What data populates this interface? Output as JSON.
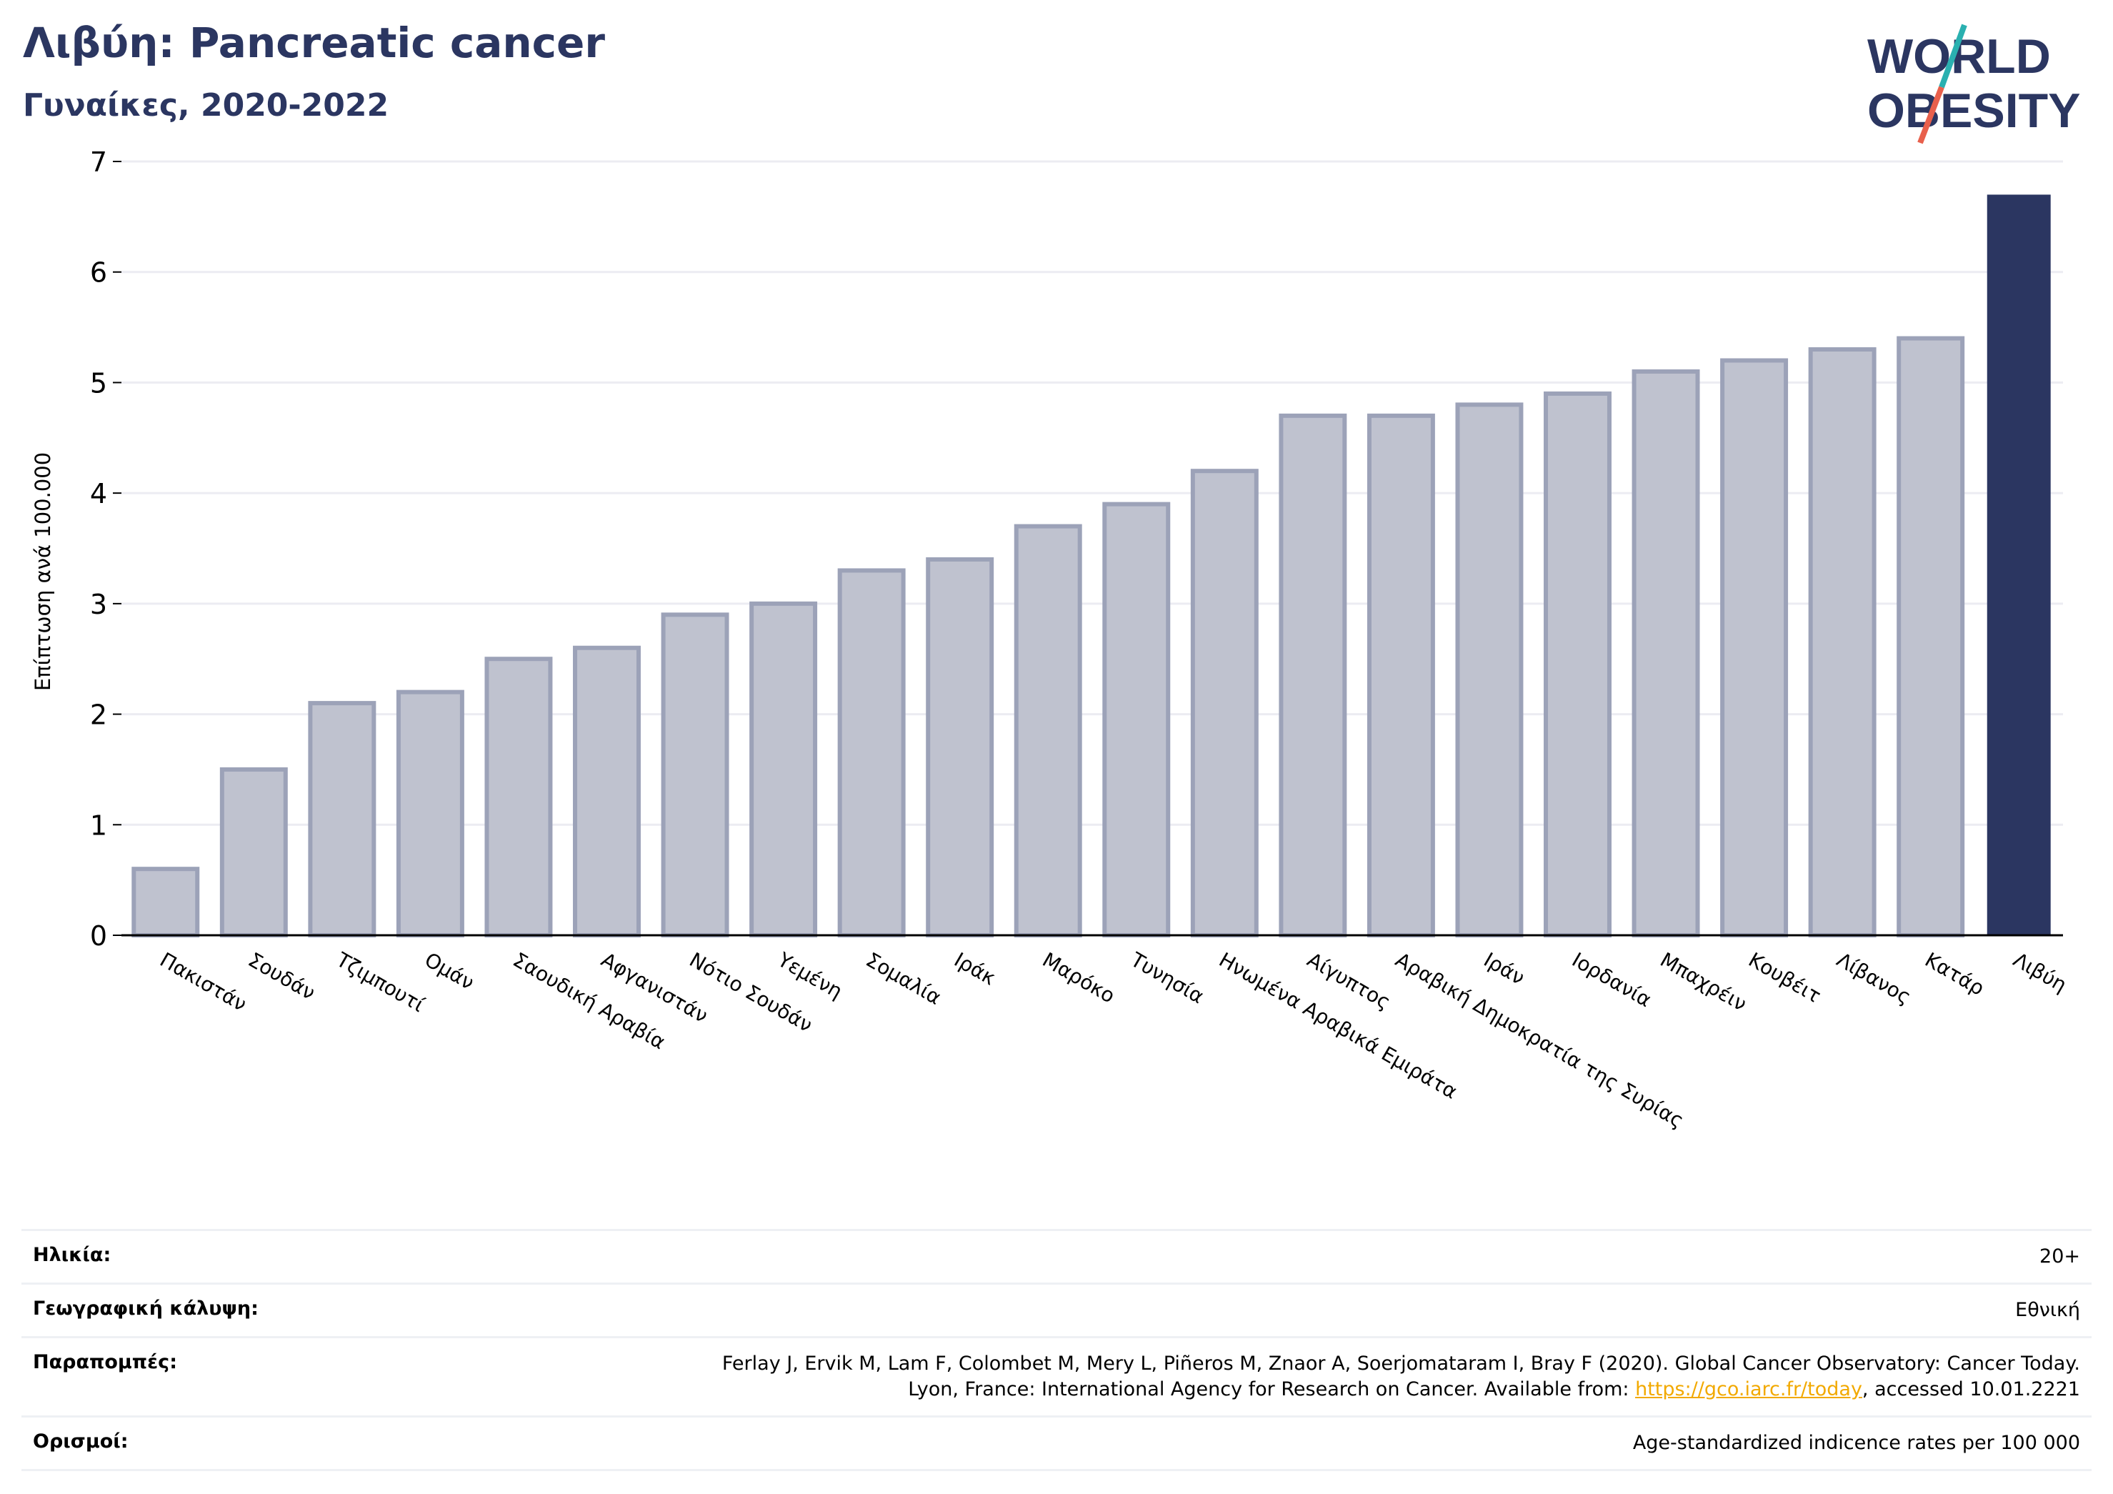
{
  "header": {
    "title": "Λιβύη: Pancreatic cancer",
    "subtitle": "Γυναίκες, 2020-2022"
  },
  "logo": {
    "line1": "WORLD",
    "line2": "OBESITY",
    "colors": {
      "text": "#2b3661",
      "slash_top": "#2ab0b0",
      "slash_bottom": "#e8604c"
    }
  },
  "chart_data": {
    "type": "bar",
    "ylabel": "Επίπτωση ανά 100.000",
    "xlabel": "",
    "ylim": [
      0,
      7
    ],
    "yticks": [
      0,
      1,
      2,
      3,
      4,
      5,
      6,
      7
    ],
    "grid": true,
    "categories": [
      "Πακιστάν",
      "Σουδάν",
      "Τζιμπουτί",
      "Ομάν",
      "Σαουδική Αραβία",
      "Αφγανιστάν",
      "Νότιο Σουδάν",
      "Υεμένη",
      "Σομαλία",
      "Ιράκ",
      "Μαρόκο",
      "Τυνησία",
      "Ηνωμένα Αραβικά Εμιράτα",
      "Αίγυπτος",
      "Αραβική Δημοκρατία της Συρίας",
      "Ιράν",
      "Ιορδανία",
      "Μπαχρέιν",
      "Κουβέιτ",
      "Λίβανος",
      "Κατάρ",
      "Λιβύη"
    ],
    "values": [
      0.6,
      1.5,
      2.1,
      2.2,
      2.5,
      2.6,
      2.9,
      3.0,
      3.3,
      3.4,
      3.7,
      3.9,
      4.2,
      4.7,
      4.7,
      4.8,
      4.9,
      5.1,
      5.2,
      5.3,
      5.4,
      6.7
    ],
    "highlight": "Λιβύη",
    "colors": {
      "bar": "#bfc2cf",
      "bar_edge": "#9ca2b8",
      "highlight": "#2b3661",
      "grid": "#ececf2"
    }
  },
  "info": {
    "age_label": "Ηλικία:",
    "age_value": "20+",
    "coverage_label": "Γεωγραφική κάλυψη:",
    "coverage_value": "Εθνική",
    "refs_label": "Παραπομπές:",
    "refs_line1": "Ferlay J, Ervik M, Lam F, Colombet M, Mery L, Piñeros M, Znaor A, Soerjomataram I, Bray F (2020). Global Cancer Observatory: Cancer Today.",
    "refs_line2_pre": "Lyon, France: International Agency for Research on Cancer. Available from: ",
    "refs_link": "https://gco.iarc.fr/today",
    "refs_line2_post": ", accessed 10.01.2221",
    "defs_label": "Ορισμοί:",
    "defs_value": "Age-standardized indicence rates per 100 000"
  }
}
